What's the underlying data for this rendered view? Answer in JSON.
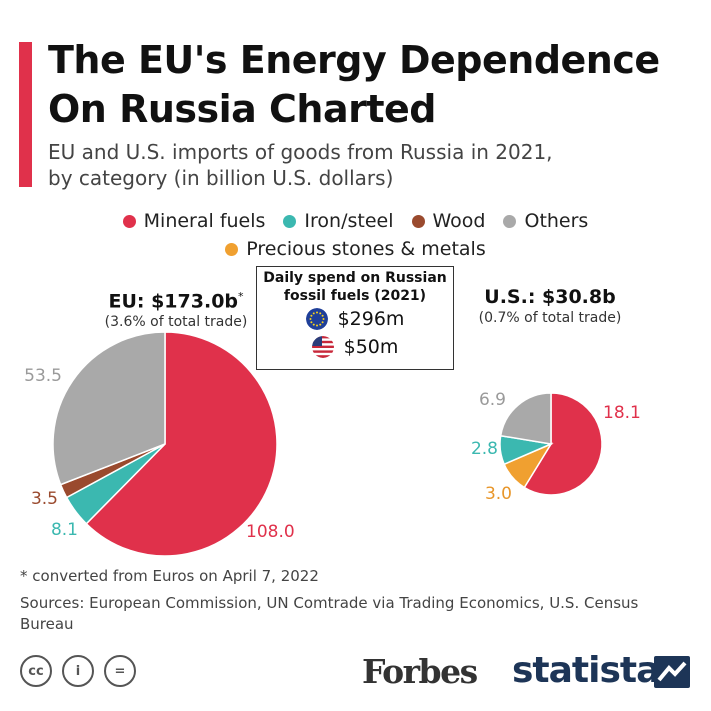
{
  "title": "The EU's Energy Dependence On Russia Charted",
  "subtitle": "EU and U.S. imports of goods from Russia in 2021, by category (in billion U.S. dollars)",
  "legend": [
    {
      "label": "Mineral fuels",
      "color": "#e0314b"
    },
    {
      "label": "Iron/steel",
      "color": "#3bb8b0"
    },
    {
      "label": "Wood",
      "color": "#9a4a2e"
    },
    {
      "label": "Others",
      "color": "#a9a9a9"
    },
    {
      "label": "Precious stones & metals",
      "color": "#f0a030"
    }
  ],
  "eu": {
    "total": "EU: $173.0b",
    "asterisk": "*",
    "share": "(3.6% of total trade)"
  },
  "us": {
    "total": "U.S.: $30.8b",
    "share": "(0.7% of total trade)"
  },
  "spend_box": {
    "title": "Daily spend on Russian fossil fuels (2021)",
    "eu_value": "$296m",
    "us_value": "$50m",
    "eu_icon": "eu-flag-icon",
    "us_icon": "us-flag-icon"
  },
  "chart_data": [
    {
      "type": "pie",
      "name": "EU",
      "slices": [
        {
          "label": "Mineral fuels",
          "value": 108.0,
          "display": "108.0",
          "color": "#e0314b"
        },
        {
          "label": "Iron/steel",
          "value": 8.1,
          "display": "8.1",
          "color": "#3bb8b0"
        },
        {
          "label": "Wood",
          "value": 3.5,
          "display": "3.5",
          "color": "#9a4a2e"
        },
        {
          "label": "Others",
          "value": 53.5,
          "display": "53.5",
          "color": "#a9a9a9"
        }
      ]
    },
    {
      "type": "pie",
      "name": "U.S.",
      "slices": [
        {
          "label": "Mineral fuels",
          "value": 18.1,
          "display": "18.1",
          "color": "#e0314b"
        },
        {
          "label": "Precious stones & metals",
          "value": 3.0,
          "display": "3.0",
          "color": "#f0a030"
        },
        {
          "label": "Iron/steel",
          "value": 2.8,
          "display": "2.8",
          "color": "#3bb8b0"
        },
        {
          "label": "Others",
          "value": 6.9,
          "display": "6.9",
          "color": "#a9a9a9"
        }
      ]
    }
  ],
  "footnote": "* converted from Euros on April 7, 2022",
  "sources": "Sources: European Commission, UN Comtrade via Trading Economics, U.S. Census Bureau",
  "footer": {
    "license_icons": [
      "cc-icon",
      "attribution-icon",
      "no-derivatives-icon"
    ],
    "cc_glyph": "cc",
    "by_glyph": "i",
    "nd_glyph": "=",
    "forbes": "Forbes",
    "statista": "statista"
  }
}
